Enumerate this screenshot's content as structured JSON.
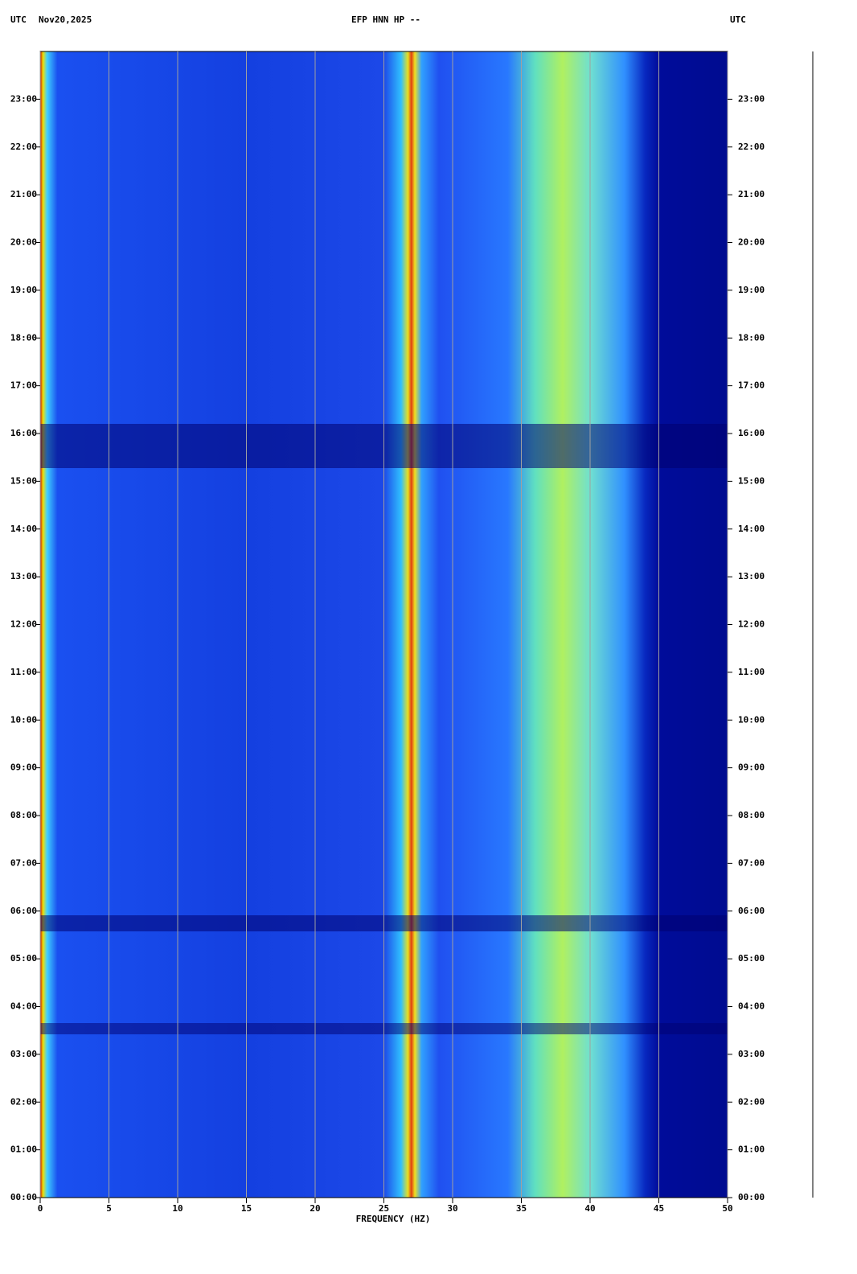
{
  "chart_data": {
    "type": "spectrogram",
    "timezone": "UTC",
    "date": "Nov20,2025",
    "title": "EFP HNN HP --",
    "xlabel": "FREQUENCY (HZ)",
    "xlim": [
      0,
      50
    ],
    "xticks": [
      0,
      5,
      10,
      15,
      20,
      25,
      30,
      35,
      40,
      45,
      50
    ],
    "ylim": [
      0,
      24
    ],
    "yticks": [
      {
        "value": 0,
        "label": "00:00"
      },
      {
        "value": 1,
        "label": "01:00"
      },
      {
        "value": 2,
        "label": "02:00"
      },
      {
        "value": 3,
        "label": "03:00"
      },
      {
        "value": 4,
        "label": "04:00"
      },
      {
        "value": 5,
        "label": "05:00"
      },
      {
        "value": 6,
        "label": "06:00"
      },
      {
        "value": 7,
        "label": "07:00"
      },
      {
        "value": 8,
        "label": "08:00"
      },
      {
        "value": 9,
        "label": "09:00"
      },
      {
        "value": 10,
        "label": "10:00"
      },
      {
        "value": 11,
        "label": "11:00"
      },
      {
        "value": 12,
        "label": "12:00"
      },
      {
        "value": 13,
        "label": "13:00"
      },
      {
        "value": 14,
        "label": "14:00"
      },
      {
        "value": 15,
        "label": "15:00"
      },
      {
        "value": 16,
        "label": "16:00"
      },
      {
        "value": 17,
        "label": "17:00"
      },
      {
        "value": 18,
        "label": "18:00"
      },
      {
        "value": 19,
        "label": "19:00"
      },
      {
        "value": 20,
        "label": "20:00"
      },
      {
        "value": 21,
        "label": "21:00"
      },
      {
        "value": 22,
        "label": "22:00"
      },
      {
        "value": 23,
        "label": "23:00"
      }
    ],
    "grid": true
  }
}
